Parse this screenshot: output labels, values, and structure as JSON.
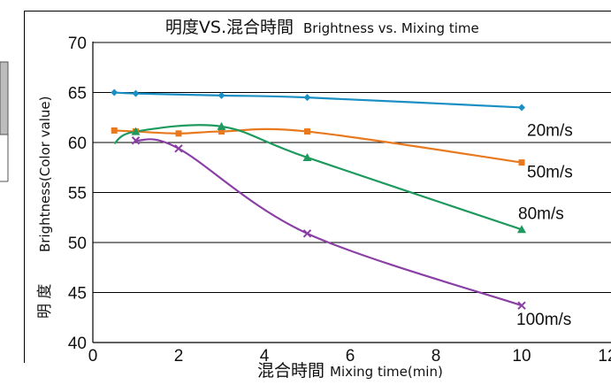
{
  "chart_data": {
    "type": "line",
    "title": "明度VS.混合時間",
    "subtitle": "Brightness vs. Mixing time",
    "xlabel_main": "混合時間",
    "xlabel_sub": "Mixing time(min)",
    "ylabel_main": "明 度",
    "ylabel_sub": "Brightness(Color value)",
    "xlim": [
      0,
      12
    ],
    "ylim": [
      40,
      70
    ],
    "xticks": [
      "0",
      "2",
      "4",
      "6",
      "8",
      "10",
      "12"
    ],
    "yticks": [
      "40",
      "45",
      "50",
      "55",
      "60",
      "65",
      "70"
    ],
    "grid": true,
    "series": [
      {
        "name": "20m/s",
        "color": "#1a8fc4",
        "marker": "diamond",
        "x": [
          0.5,
          1,
          3,
          5,
          10
        ],
        "y": [
          65.0,
          64.9,
          64.7,
          64.5,
          63.5
        ]
      },
      {
        "name": "50m/s",
        "color": "#e8791f",
        "marker": "square",
        "x": [
          0.5,
          1,
          2,
          3,
          5,
          10
        ],
        "y": [
          61.2,
          61.1,
          60.9,
          61.1,
          61.1,
          58.0
        ]
      },
      {
        "name": "80m/s",
        "color": "#1e9a5e",
        "marker": "triangle",
        "x": [
          1,
          3,
          5,
          10
        ],
        "y": [
          61.1,
          61.6,
          58.5,
          51.3
        ]
      },
      {
        "name": "100m/s",
        "color": "#8a3fa5",
        "marker": "x",
        "x": [
          1,
          2,
          5,
          10
        ],
        "y": [
          60.2,
          59.4,
          50.9,
          43.7
        ]
      }
    ]
  }
}
